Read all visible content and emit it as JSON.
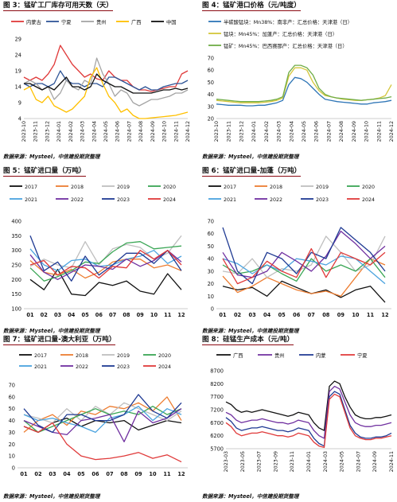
{
  "chart_data": [
    {
      "id": "c3",
      "title": "图 3：锰矿工厂库存可用天数（天）",
      "source": "数据来源：Mysteel，中信建投期货整理",
      "type": "line",
      "legend_position": "top",
      "ylim": [
        4,
        29
      ],
      "yticks": [
        "29",
        "24",
        "19",
        "14",
        "9",
        "4"
      ],
      "ytick_values": [
        29,
        24,
        19,
        14,
        9,
        4
      ],
      "xlabels": [
        "2023-10",
        "2023-11",
        "2023-12",
        "2024-01",
        "2024-02",
        "2024-03",
        "2024-04",
        "2024-05",
        "2024-06",
        "2024-07",
        "2024-08",
        "2024-09",
        "2024-10",
        "2024-11",
        "2024-12"
      ],
      "series": [
        {
          "name": "内蒙古",
          "color": "#e03a3a",
          "values": [
            17,
            16,
            17,
            16,
            18,
            21,
            27,
            24,
            21,
            19,
            17,
            18,
            16.5,
            16,
            19,
            17,
            16,
            16,
            14,
            13,
            13,
            12.5,
            13,
            13.5,
            14,
            14,
            18,
            19
          ]
        },
        {
          "name": "宁夏",
          "color": "#2f5597",
          "values": [
            15,
            14,
            15,
            15,
            14,
            15,
            19,
            16,
            15,
            15,
            14,
            15,
            15,
            14,
            17,
            17,
            16,
            15,
            14,
            13,
            14,
            13,
            13,
            14,
            14.5,
            15,
            15,
            16
          ]
        },
        {
          "name": "贵州",
          "color": "#a5a5a5",
          "values": [
            15,
            16,
            15,
            13,
            14,
            10,
            12,
            16,
            14,
            13,
            16,
            15,
            23,
            18,
            15,
            11,
            13,
            12,
            9,
            8,
            9,
            10,
            10,
            10.5,
            11,
            12,
            12,
            13
          ]
        },
        {
          "name": "广西",
          "color": "#ffc000",
          "values": [
            13,
            14,
            10,
            9,
            11,
            8,
            7,
            6,
            7,
            9,
            11,
            17,
            20,
            15,
            11,
            9,
            6,
            7,
            5,
            4,
            4,
            4.2,
            4.4,
            4.6,
            4.8,
            5,
            5.5,
            6
          ]
        },
        {
          "name": "中国",
          "color": "#111111",
          "values": [
            15,
            15,
            14,
            13,
            14,
            13,
            15,
            17,
            14,
            14,
            13,
            14,
            18,
            16,
            15,
            14,
            14,
            13,
            12,
            12,
            12,
            12,
            12.5,
            13,
            13,
            13.5,
            13,
            13.5
          ]
        }
      ]
    },
    {
      "id": "c4",
      "title": "图 4：锰矿港口价格（元/吨度）",
      "source": "数据来源：Mysteel，中信建投期货整理",
      "type": "line",
      "legend_position": "top",
      "ylim": [
        20,
        70
      ],
      "yticks": [
        "70",
        "60",
        "50",
        "40",
        "30",
        "20"
      ],
      "ytick_values": [
        70,
        60,
        50,
        40,
        30,
        20
      ],
      "xlabels": [
        "2023-10",
        "2023-11",
        "2023-12",
        "2024-01",
        "2024-02",
        "2024-03",
        "2024-04",
        "2024-05",
        "2024-06",
        "2024-07",
        "2024-08",
        "2024-09",
        "2024-10",
        "2024-11",
        "2024-12"
      ],
      "series": [
        {
          "name": "半碳酸锰块：Mn38%：南非产：汇总价格：天津港（日）",
          "color": "#2e75b6",
          "values": [
            32,
            31.5,
            31,
            31,
            31,
            30.5,
            30.5,
            31,
            31,
            32,
            33,
            35,
            48,
            54,
            53,
            50,
            45,
            40,
            36,
            35,
            34,
            33.5,
            33,
            32.5,
            32,
            32,
            33,
            33.5,
            34,
            35
          ]
        },
        {
          "name": "锰块：Mn45%：加蓬产：汇总价格：天津港（日）",
          "color": "#d4c63b",
          "values": [
            35,
            34.5,
            34,
            33.5,
            33,
            33,
            33,
            33,
            33.5,
            34,
            35,
            37,
            55,
            62,
            62,
            60,
            50,
            43,
            39,
            38,
            37,
            36,
            35.5,
            35,
            35,
            35.5,
            36,
            37,
            39,
            48
          ]
        },
        {
          "name": "锰矿：Mn45%：巴西赛那产：汇总价格：天津港（日）",
          "color": "#70ad47",
          "values": [
            36,
            35.5,
            35,
            34.5,
            34,
            34,
            34,
            34,
            34.5,
            35,
            36,
            38,
            58,
            64,
            64,
            62,
            56,
            45,
            40,
            38,
            37,
            36.5,
            36,
            35.5,
            35,
            35.5,
            36,
            36.5,
            37,
            38
          ]
        }
      ]
    },
    {
      "id": "c5",
      "title": "图 5：锰矿进口量（万吨）",
      "source": "数据来源：Mysteel，中信建投期货整理",
      "type": "line",
      "legend_position": "top",
      "ylim": [
        100,
        400
      ],
      "yticks": [
        "400",
        "350",
        "300",
        "250",
        "200",
        "150",
        "100"
      ],
      "ytick_values": [
        400,
        350,
        300,
        250,
        200,
        150,
        100
      ],
      "categories": [
        "01",
        "02",
        "03",
        "04",
        "05",
        "06",
        "07",
        "08",
        "09",
        "10",
        "11",
        "12"
      ],
      "series": [
        {
          "name": "2017",
          "color": "#111111",
          "values": [
            200,
            165,
            235,
            150,
            145,
            190,
            180,
            195,
            160,
            150,
            220,
            165
          ]
        },
        {
          "name": "2018",
          "color": "#ed7d31",
          "values": [
            265,
            225,
            215,
            235,
            205,
            225,
            260,
            270,
            270,
            240,
            250,
            230
          ]
        },
        {
          "name": "2019",
          "color": "#bfbfbf",
          "values": [
            245,
            270,
            250,
            240,
            330,
            250,
            305,
            320,
            310,
            270,
            290,
            350
          ]
        },
        {
          "name": "2020",
          "color": "#3aa655",
          "values": [
            240,
            195,
            210,
            230,
            260,
            255,
            295,
            325,
            330,
            305,
            310,
            315
          ]
        },
        {
          "name": "2021",
          "color": "#4aa3df",
          "values": [
            305,
            250,
            230,
            265,
            270,
            245,
            250,
            270,
            280,
            300,
            255,
            280
          ]
        },
        {
          "name": "2022",
          "color": "#7030a0",
          "values": [
            285,
            225,
            200,
            225,
            250,
            245,
            235,
            270,
            245,
            265,
            300,
            260
          ]
        },
        {
          "name": "2023",
          "color": "#1f3a93",
          "values": [
            350,
            230,
            260,
            195,
            280,
            215,
            250,
            290,
            290,
            255,
            300,
            230
          ]
        },
        {
          "name": "2024",
          "color": "#e03a3a",
          "values": [
            250,
            265,
            215,
            245,
            240,
            205,
            245,
            240,
            300,
            270,
            300,
            250
          ]
        }
      ]
    },
    {
      "id": "c6",
      "title": "图 6：锰矿进口量-加蓬（万吨）",
      "source": "数据来源：Mysteel，中信建投期货整理",
      "type": "line",
      "legend_position": "top",
      "ylim": [
        0,
        70
      ],
      "yticks": [
        "70",
        "60",
        "50",
        "40",
        "30",
        "20",
        "10",
        "0"
      ],
      "ytick_values": [
        70,
        60,
        50,
        40,
        30,
        20,
        10,
        0
      ],
      "categories": [
        "01",
        "02",
        "03",
        "04",
        "05",
        "06",
        "07",
        "08",
        "09",
        "10",
        "11",
        "12"
      ],
      "series": [
        {
          "name": "2017",
          "color": "#111111",
          "values": [
            18,
            15,
            17,
            10,
            22,
            17,
            12,
            15,
            9,
            15,
            18,
            5
          ]
        },
        {
          "name": "2018",
          "color": "#ed7d31",
          "values": [
            26,
            13,
            18,
            25,
            20,
            15,
            12,
            14,
            10,
            25,
            40,
            35
          ]
        },
        {
          "name": "2019",
          "color": "#bfbfbf",
          "values": [
            30,
            28,
            40,
            25,
            32,
            30,
            35,
            58,
            45,
            30,
            35,
            58
          ]
        },
        {
          "name": "2020",
          "color": "#3aa655",
          "values": [
            35,
            28,
            30,
            35,
            28,
            22,
            40,
            30,
            35,
            30,
            40,
            25
          ]
        },
        {
          "name": "2021",
          "color": "#4aa3df",
          "values": [
            40,
            36,
            28,
            35,
            30,
            40,
            38,
            35,
            42,
            40,
            30,
            20
          ]
        },
        {
          "name": "2022",
          "color": "#7030a0",
          "values": [
            45,
            27,
            25,
            30,
            45,
            38,
            30,
            42,
            62,
            52,
            40,
            50
          ]
        },
        {
          "name": "2023",
          "color": "#1f3a93",
          "values": [
            65,
            30,
            20,
            45,
            40,
            28,
            45,
            40,
            65,
            55,
            45,
            30
          ]
        },
        {
          "name": "2024",
          "color": "#e03a3a",
          "values": [
            40,
            20,
            25,
            38,
            30,
            25,
            48,
            25,
            45,
            40,
            35,
            45
          ]
        }
      ]
    },
    {
      "id": "c7",
      "title": "图 7：锰矿进口量-澳大利亚（万吨）",
      "source": "数据来源：Mysteel，中信建投期货整理",
      "type": "line",
      "legend_position": "top",
      "ylim": [
        0,
        70
      ],
      "yticks": [
        "70",
        "60",
        "50",
        "40",
        "30",
        "20",
        "10",
        "0"
      ],
      "ytick_values": [
        70,
        60,
        50,
        40,
        30,
        20,
        10,
        0
      ],
      "categories": [
        "01",
        "02",
        "03",
        "04",
        "05",
        "06",
        "07",
        "08",
        "09",
        "10",
        "11",
        "12"
      ],
      "series": [
        {
          "name": "2017",
          "color": "#111111",
          "values": [
            35,
            30,
            38,
            42,
            35,
            40,
            38,
            40,
            32,
            36,
            40,
            38
          ]
        },
        {
          "name": "2018",
          "color": "#ed7d31",
          "values": [
            30,
            40,
            45,
            36,
            48,
            45,
            52,
            50,
            55,
            48,
            60,
            40
          ]
        },
        {
          "name": "2019",
          "color": "#bfbfbf",
          "values": [
            45,
            42,
            38,
            50,
            40,
            52,
            45,
            55,
            50,
            45,
            40,
            48
          ]
        },
        {
          "name": "2020",
          "color": "#3aa655",
          "values": [
            40,
            30,
            35,
            40,
            45,
            50,
            45,
            48,
            45,
            52,
            45,
            50
          ]
        },
        {
          "name": "2021",
          "color": "#4aa3df",
          "values": [
            45,
            40,
            42,
            38,
            35,
            30,
            42,
            45,
            52,
            40,
            50,
            45
          ]
        },
        {
          "name": "2022",
          "color": "#7030a0",
          "values": [
            40,
            35,
            30,
            28,
            40,
            42,
            45,
            22,
            48,
            38,
            42,
            50
          ]
        },
        {
          "name": "2023",
          "color": "#1f3a93",
          "values": [
            50,
            36,
            30,
            45,
            45,
            40,
            40,
            45,
            62,
            48,
            42,
            55
          ]
        },
        {
          "name": "2024",
          "color": "#e03a3a",
          "values": [
            35,
            30,
            38,
            20,
            10,
            7,
            8,
            10,
            13,
            8,
            11,
            5
          ]
        }
      ]
    },
    {
      "id": "c8",
      "title": "图 8：硅锰生产成本（元/吨）",
      "source": "数据来源：Mysteel，中信建投期货整理",
      "type": "line",
      "legend_position": "top",
      "ylim": [
        5700,
        8700
      ],
      "yticks": [
        "8700",
        "8200",
        "7700",
        "7200",
        "6700",
        "6200",
        "5700"
      ],
      "ytick_values": [
        8700,
        8200,
        7700,
        7200,
        6700,
        6200,
        5700
      ],
      "xlabels": [
        "2023-03",
        "2023-05",
        "2023-07",
        "2023-09",
        "2023-11",
        "2024-01",
        "2024-03",
        "2024-05",
        "2024-07",
        "2024-09",
        "2024-11"
      ],
      "series": [
        {
          "name": "广西",
          "color": "#111111",
          "values": [
            7500,
            7400,
            7200,
            7100,
            7150,
            7100,
            7150,
            7200,
            7150,
            7100,
            7050,
            7000,
            6950,
            7000,
            7100,
            7050,
            7000,
            6700,
            6500,
            6400,
            8100,
            8300,
            8200,
            7700,
            7300,
            7000,
            6900,
            6850,
            6850,
            6900,
            6900,
            6950,
            7000
          ]
        },
        {
          "name": "贵州",
          "color": "#7030a0",
          "values": [
            7100,
            7000,
            6800,
            6700,
            6750,
            6800,
            6800,
            6850,
            6800,
            6750,
            6700,
            6700,
            6650,
            6700,
            6800,
            6750,
            6700,
            6400,
            6200,
            6100,
            7900,
            8100,
            8000,
            7500,
            7000,
            6700,
            6600,
            6550,
            6550,
            6600,
            6600,
            6650,
            6700
          ]
        },
        {
          "name": "内蒙",
          "color": "#1f3a93",
          "values": [
            6900,
            6750,
            6500,
            6400,
            6450,
            6500,
            6500,
            6550,
            6500,
            6450,
            6400,
            6400,
            6350,
            6400,
            6500,
            6450,
            6400,
            6100,
            5900,
            5800,
            7700,
            7900,
            7800,
            7200,
            6600,
            6300,
            6150,
            6100,
            6100,
            6150,
            6150,
            6200,
            6300
          ]
        },
        {
          "name": "宁夏",
          "color": "#e03a3a",
          "values": [
            6700,
            6550,
            6300,
            6200,
            6250,
            6300,
            6300,
            6350,
            6300,
            6250,
            6200,
            6200,
            6150,
            6200,
            6300,
            6250,
            6200,
            5950,
            5800,
            5750,
            7600,
            7800,
            7700,
            7100,
            6500,
            6200,
            6100,
            6050,
            6050,
            6100,
            6100,
            6150,
            6200
          ]
        }
      ]
    }
  ]
}
